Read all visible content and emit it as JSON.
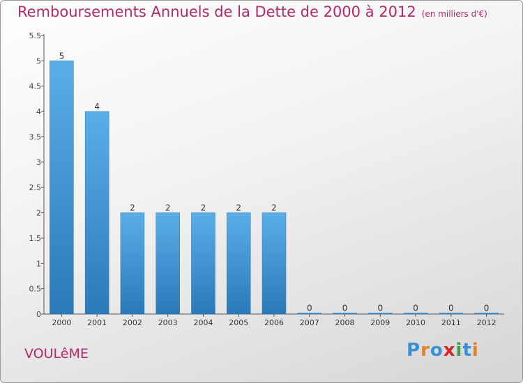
{
  "header": {
    "title": "Remboursements Annuels de la Dette de 2000 à 2012",
    "subtitle": "(en milliers d'€)"
  },
  "footer": {
    "commune": "VOULêME",
    "logo_text": "Proxiti",
    "logo_colors": [
      "#3a8fd6",
      "#e8801f",
      "#3a8fd6",
      "#d6262a",
      "#3aa04a",
      "#3a8fd6",
      "#e8801f"
    ]
  },
  "colors": {
    "bar_light": "#5aaee8",
    "bar_dark": "#2b79b8",
    "title": "#b5286a"
  },
  "chart_data": {
    "type": "bar",
    "categories": [
      "2000",
      "2001",
      "2002",
      "2003",
      "2004",
      "2005",
      "2006",
      "2007",
      "2008",
      "2009",
      "2010",
      "2011",
      "2012"
    ],
    "values": [
      5,
      4,
      2,
      2,
      2,
      2,
      2,
      0,
      0,
      0,
      0,
      0,
      0
    ],
    "data_labels": [
      "5",
      "4",
      "2",
      "2",
      "2",
      "2",
      "2",
      "0",
      "0",
      "0",
      "0",
      "0",
      "0"
    ],
    "yticks": [
      "0",
      "0.5",
      "1",
      "1.5",
      "2",
      "2.5",
      "3",
      "3.5",
      "4",
      "4.5",
      "5",
      "5.5"
    ],
    "ylim": [
      0,
      5.5
    ],
    "title": "Remboursements Annuels de la Dette de 2000 à 2012",
    "xlabel": "",
    "ylabel": "",
    "legend": "none",
    "grid": false
  }
}
